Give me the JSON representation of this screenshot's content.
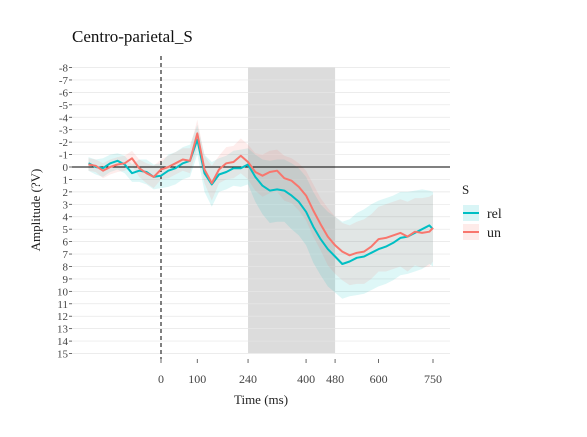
{
  "chart_data": {
    "type": "line",
    "title": "Centro-parietal_S",
    "xlabel": "Time (ms)",
    "ylabel": "Amplitude (?V)",
    "x_ticks": [
      0,
      100,
      240,
      400,
      480,
      600,
      750
    ],
    "y_ticks": [
      -8,
      -7,
      -6,
      -5,
      -4,
      -3,
      -2,
      -1,
      0,
      1,
      2,
      3,
      4,
      5,
      6,
      7,
      8,
      9,
      10,
      11,
      12,
      13,
      14,
      15
    ],
    "y_tick_labels": [
      "-8",
      "-7",
      "-6",
      "-5",
      "-4",
      "-3",
      "-2",
      "-1",
      "0",
      "1",
      "2",
      "3",
      "4",
      "5",
      "6",
      "7",
      "8",
      "9",
      "10",
      "11",
      "12",
      "13",
      "14",
      "15"
    ],
    "xlim": [
      -200,
      790
    ],
    "ylim": [
      -8,
      15
    ],
    "y_reversed": true,
    "grid": true,
    "zero_hline": 0,
    "onset_vline": 0,
    "shaded_window": [
      240,
      480
    ],
    "legend": {
      "title": "S",
      "position": "right",
      "entries": [
        "rel",
        "un"
      ]
    },
    "series": [
      {
        "name": "rel",
        "color": "#00BFC4",
        "x": [
          -200,
          -180,
          -160,
          -140,
          -120,
          -100,
          -80,
          -60,
          -40,
          -20,
          0,
          20,
          40,
          60,
          80,
          100,
          120,
          140,
          160,
          180,
          200,
          220,
          240,
          260,
          280,
          300,
          320,
          340,
          360,
          380,
          400,
          420,
          440,
          460,
          480,
          500,
          520,
          540,
          560,
          580,
          600,
          620,
          640,
          660,
          680,
          700,
          720,
          740,
          750
        ],
        "values": [
          -0.3,
          0.0,
          0.1,
          -0.3,
          -0.5,
          -0.2,
          0.5,
          0.3,
          0.4,
          0.8,
          0.7,
          0.3,
          0.1,
          -0.3,
          -0.5,
          -2.2,
          0.5,
          1.4,
          0.6,
          0.4,
          0.1,
          0.1,
          -0.2,
          0.8,
          1.5,
          1.9,
          1.8,
          1.9,
          2.3,
          2.8,
          3.6,
          4.8,
          5.8,
          6.6,
          7.2,
          7.8,
          7.6,
          7.3,
          7.2,
          6.9,
          6.6,
          6.4,
          6.1,
          5.7,
          5.6,
          5.3,
          5.0,
          4.7,
          5.0
        ],
        "ci_lower": [
          -0.8,
          -0.6,
          -0.7,
          -1.0,
          -1.1,
          -0.9,
          -0.2,
          -0.6,
          -0.6,
          -0.2,
          -0.3,
          -1.0,
          -1.2,
          -1.6,
          -1.8,
          -3.4,
          -1.0,
          -0.4,
          -0.7,
          -0.9,
          -1.3,
          -1.4,
          -1.5,
          -1.0,
          -0.6,
          -0.5,
          -0.6,
          -0.6,
          -0.3,
          0.1,
          0.8,
          2.0,
          3.0,
          3.6,
          4.0,
          4.4,
          4.2,
          3.7,
          3.4,
          3.0,
          2.7,
          2.5,
          2.3,
          2.0,
          2.0,
          1.9,
          1.8,
          1.9,
          2.0
        ],
        "ci_upper": [
          0.3,
          0.6,
          0.8,
          0.4,
          0.2,
          0.5,
          1.2,
          1.2,
          1.4,
          1.8,
          1.7,
          1.6,
          1.4,
          1.0,
          0.8,
          -1.0,
          2.0,
          3.2,
          2.0,
          1.8,
          1.5,
          1.6,
          1.4,
          2.8,
          3.8,
          4.5,
          4.4,
          4.4,
          5.0,
          5.5,
          6.3,
          7.7,
          8.7,
          9.6,
          10.1,
          10.6,
          10.4,
          10.3,
          10.2,
          9.9,
          9.6,
          9.4,
          9.1,
          8.7,
          8.6,
          8.4,
          8.2,
          7.8,
          8.0
        ]
      },
      {
        "name": "un",
        "color": "#F8766D",
        "x": [
          -200,
          -180,
          -160,
          -140,
          -120,
          -100,
          -80,
          -60,
          -40,
          -20,
          0,
          20,
          40,
          60,
          80,
          100,
          120,
          140,
          160,
          180,
          200,
          220,
          240,
          260,
          280,
          300,
          320,
          340,
          360,
          380,
          400,
          420,
          440,
          460,
          480,
          500,
          520,
          540,
          560,
          580,
          600,
          620,
          640,
          660,
          680,
          700,
          720,
          740,
          750
        ],
        "values": [
          -0.2,
          -0.1,
          0.3,
          0.0,
          -0.2,
          -0.3,
          -0.7,
          0.1,
          0.5,
          0.8,
          0.2,
          0.0,
          -0.3,
          -0.6,
          -0.5,
          -2.7,
          0.2,
          1.3,
          0.2,
          -0.3,
          -0.4,
          -0.9,
          -0.4,
          0.4,
          0.7,
          0.4,
          0.3,
          0.9,
          1.1,
          1.6,
          2.3,
          3.5,
          4.6,
          5.6,
          6.3,
          6.8,
          7.1,
          6.9,
          6.8,
          6.4,
          5.8,
          5.7,
          5.5,
          5.3,
          5.6,
          5.2,
          5.3,
          5.2,
          4.9
        ],
        "ci_lower": [
          -0.7,
          -0.6,
          -0.3,
          -0.6,
          -0.8,
          -0.9,
          -1.3,
          -0.6,
          -0.3,
          -0.1,
          -0.6,
          -0.9,
          -1.2,
          -1.5,
          -1.5,
          -3.8,
          -0.9,
          -0.1,
          -0.9,
          -1.6,
          -1.7,
          -2.3,
          -1.8,
          -1.1,
          -1.0,
          -1.3,
          -1.4,
          -0.9,
          -0.7,
          -0.3,
          0.3,
          1.4,
          2.5,
          3.3,
          4.0,
          4.5,
          4.7,
          4.4,
          4.2,
          3.8,
          3.2,
          3.0,
          2.8,
          2.6,
          2.8,
          2.5,
          2.5,
          2.4,
          2.2
        ],
        "ci_upper": [
          0.3,
          0.4,
          0.9,
          0.6,
          0.4,
          0.3,
          -0.1,
          0.8,
          1.3,
          1.7,
          1.0,
          0.9,
          0.6,
          0.3,
          0.5,
          -1.6,
          1.3,
          2.7,
          1.3,
          1.0,
          0.9,
          0.5,
          1.0,
          1.9,
          2.4,
          2.1,
          2.0,
          2.7,
          2.9,
          3.5,
          4.3,
          5.6,
          6.7,
          7.9,
          8.6,
          9.1,
          9.5,
          9.4,
          9.4,
          9.0,
          8.4,
          8.4,
          8.2,
          8.0,
          8.4,
          7.9,
          8.1,
          8.0,
          7.6
        ]
      }
    ]
  }
}
